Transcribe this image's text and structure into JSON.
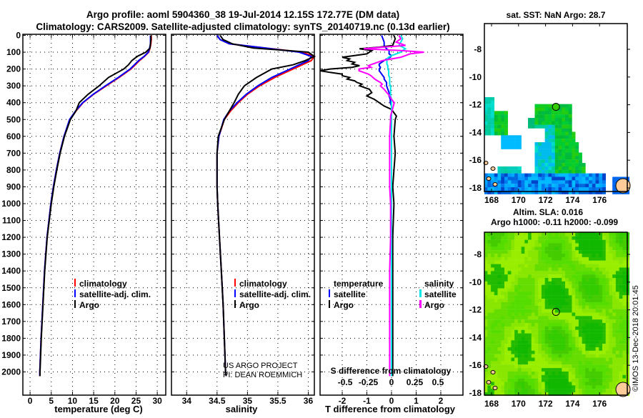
{
  "title": {
    "line1": "Argo profile: aoml 5904360_38 19-Jul-2014 12.15S 172.77E (DM data)",
    "line2": "Climatology: CARS2009. Satellite-adjusted climatology: synTS_20140719.nc (0.13d earlier)"
  },
  "depth_ticks": [
    "0",
    "100",
    "200",
    "300",
    "400",
    "500",
    "600",
    "700",
    "800",
    "900",
    "1000",
    "1100",
    "1200",
    "1300",
    "1400",
    "1500",
    "1600",
    "1700",
    "1800",
    "1900",
    "2000"
  ],
  "chart_data": [
    {
      "type": "line",
      "title": "",
      "xlabel": "temperature (deg C)",
      "ylabel": "depth",
      "xlim": [
        -1.7,
        32
      ],
      "ylim": [
        2025,
        0
      ],
      "xticks": [
        "0",
        "5",
        "10",
        "15",
        "20",
        "25",
        "30"
      ],
      "xtick_values": [
        0,
        5,
        10,
        15,
        20,
        25,
        30
      ],
      "legend": "bottom-right",
      "depths": [
        0,
        25,
        50,
        75,
        100,
        125,
        150,
        175,
        200,
        250,
        300,
        350,
        400,
        450,
        500,
        600,
        700,
        800,
        900,
        1000,
        1200,
        1400,
        1600,
        1800,
        2000,
        2025
      ],
      "series": [
        {
          "name": "climatology",
          "color": "#ff0000",
          "values": [
            28.6,
            28.6,
            28.5,
            28.3,
            28.0,
            27.0,
            25.8,
            24.8,
            23.8,
            21.0,
            18.0,
            15.0,
            12.5,
            10.8,
            9.4,
            8.0,
            7.0,
            6.2,
            5.5,
            4.9,
            4.0,
            3.4,
            3.0,
            2.6,
            2.3,
            2.3
          ]
        },
        {
          "name": "satellite-adj. clim.",
          "color": "#0000ff",
          "values": [
            28.4,
            28.4,
            28.4,
            28.2,
            27.9,
            26.9,
            25.6,
            24.6,
            23.6,
            20.8,
            17.8,
            14.9,
            12.4,
            10.7,
            9.3,
            8.0,
            7.0,
            6.2,
            5.5,
            4.9,
            4.0,
            3.4,
            3.0,
            2.6,
            2.3,
            2.3
          ]
        },
        {
          "name": "Argo",
          "color": "#000000",
          "values": [
            28.5,
            28.5,
            28.4,
            28.3,
            27.3,
            25.3,
            24.0,
            23.2,
            22.1,
            18.5,
            16.3,
            13.7,
            11.6,
            10.8,
            9.5,
            8.1,
            7.1,
            6.3,
            5.6,
            5.0,
            4.05,
            3.45,
            3.05,
            2.65,
            2.35,
            2.35
          ]
        }
      ]
    },
    {
      "type": "line",
      "title": "",
      "xlabel": "salinity",
      "ylabel": "depth",
      "xlim": [
        33.75,
        36.1
      ],
      "ylim": [
        2025,
        0
      ],
      "xticks": [
        "34",
        "34.5",
        "35",
        "35.5",
        "36"
      ],
      "xtick_values": [
        34,
        34.5,
        35,
        35.5,
        36
      ],
      "legend": "bottom-right",
      "depths": [
        0,
        25,
        50,
        75,
        100,
        125,
        150,
        175,
        200,
        250,
        300,
        350,
        400,
        450,
        500,
        600,
        700,
        800,
        900,
        1000,
        1200,
        1400,
        1600,
        1800,
        2000,
        2025
      ],
      "series": [
        {
          "name": "climatology",
          "color": "#ff0000",
          "values": [
            34.5,
            34.55,
            34.7,
            35.3,
            35.9,
            36.1,
            36.05,
            35.9,
            35.75,
            35.45,
            35.2,
            35.0,
            34.85,
            34.72,
            34.62,
            34.53,
            34.5,
            34.5,
            34.5,
            34.51,
            34.54,
            34.57,
            34.6,
            34.62,
            34.64,
            34.65
          ]
        },
        {
          "name": "satellite-adj. clim.",
          "color": "#0000ff",
          "values": [
            34.5,
            34.55,
            34.7,
            35.3,
            35.85,
            36.05,
            36.0,
            35.85,
            35.7,
            35.4,
            35.17,
            34.98,
            34.83,
            34.7,
            34.61,
            34.53,
            34.5,
            34.5,
            34.5,
            34.51,
            34.54,
            34.57,
            34.6,
            34.62,
            34.64,
            34.65
          ]
        },
        {
          "name": "Argo",
          "color": "#000000",
          "values": [
            34.55,
            34.6,
            34.75,
            35.1,
            36.0,
            36.1,
            35.95,
            35.75,
            35.4,
            35.15,
            34.95,
            34.85,
            34.78,
            34.7,
            34.62,
            34.52,
            34.5,
            34.5,
            34.5,
            34.51,
            34.54,
            34.57,
            34.6,
            34.62,
            34.64,
            34.65
          ]
        }
      ]
    },
    {
      "type": "line",
      "title": "",
      "xlabel": "T difference from climatology",
      "xlabel2": "S difference from climatology",
      "ylabel": "depth",
      "xlim": [
        -2.9,
        2.9
      ],
      "xlim_S": [
        -0.77,
        0.77
      ],
      "ylim": [
        2025,
        0
      ],
      "xticks": [
        "-2",
        "-1",
        "0",
        "1",
        "2"
      ],
      "xtick_values": [
        -2,
        -1,
        0,
        1,
        2
      ],
      "xticks_S": [
        "-0.5",
        "-0.25",
        "0",
        "0.25",
        "0.5"
      ],
      "xtick_values_S": [
        -0.5,
        -0.25,
        0,
        0.25,
        0.5
      ],
      "legend_left_title": "temperature",
      "legend_right_title": "salinity",
      "depths": [
        0,
        20,
        40,
        60,
        70,
        80,
        90,
        100,
        110,
        120,
        130,
        140,
        150,
        160,
        170,
        180,
        190,
        200,
        210,
        220,
        230,
        240,
        250,
        260,
        270,
        280,
        290,
        300,
        320,
        340,
        360,
        380,
        400,
        420,
        440,
        460,
        480,
        500,
        600,
        700,
        800,
        900,
        1000,
        1200,
        1400,
        1600,
        1800,
        2000,
        2025
      ],
      "series": [
        {
          "name": "satellite",
          "variable": "temperature",
          "color": "#0000ff",
          "values": [
            -0.4,
            -0.35,
            -0.3,
            -0.3,
            -0.25,
            -0.2,
            -0.1,
            -0.1,
            -0.1,
            0,
            -0.05,
            -0.2,
            -0.3,
            -0.4,
            -0.5,
            -0.5,
            -0.45,
            -0.5,
            -0.5,
            -0.45,
            -0.4,
            -0.35,
            -0.3,
            -0.3,
            -0.25,
            -0.2,
            -0.2,
            -0.2,
            -0.15,
            -0.1,
            -0.1,
            -0.05,
            -0.05,
            0,
            0,
            0,
            0,
            0,
            0,
            0,
            0,
            0,
            0,
            0,
            0,
            0,
            0,
            0,
            0
          ]
        },
        {
          "name": "Argo",
          "variable": "temperature",
          "color": "#000000",
          "values": [
            0.1,
            0.15,
            0.1,
            0.05,
            -0.5,
            -1.3,
            -0.8,
            -0.9,
            -1.0,
            -1.5,
            -2.0,
            -1.7,
            -1.8,
            -1.5,
            -1.6,
            -1.3,
            -1.6,
            -2.5,
            -2.9,
            -2.5,
            -2.0,
            -2.0,
            -1.7,
            -1.8,
            -1.5,
            -1.4,
            -1.2,
            -1.3,
            -0.9,
            -0.8,
            -1.0,
            -0.7,
            -0.5,
            -0.3,
            0.0,
            0.1,
            0.2,
            0.15,
            0.1,
            0.15,
            0.1,
            0.05,
            0.1,
            0.05,
            0.05,
            0.05,
            0.05,
            0.05,
            0.05
          ]
        },
        {
          "name": "satellite",
          "variable": "salinity",
          "color": "#00e5e5",
          "values": [
            0.1,
            0.12,
            0.1,
            0.08,
            0.12,
            0.15,
            0.12,
            0.1,
            0.05,
            0.0,
            -0.03,
            -0.05,
            -0.05,
            -0.05,
            -0.05,
            -0.04,
            -0.04,
            -0.04,
            -0.03,
            -0.03,
            -0.03,
            -0.03,
            -0.02,
            -0.02,
            -0.02,
            -0.02,
            -0.02,
            -0.01,
            -0.01,
            -0.01,
            -0.01,
            0,
            0,
            0,
            0,
            0,
            0,
            0,
            0,
            0,
            0,
            0,
            0,
            0,
            0,
            0,
            0,
            0,
            0
          ]
        },
        {
          "name": "Argo",
          "variable": "salinity",
          "color": "#ff00ff",
          "values": [
            0.08,
            0.1,
            0.05,
            0.15,
            -0.1,
            -0.3,
            0.1,
            0.35,
            0.2,
            0.15,
            0.1,
            0.0,
            -0.1,
            -0.15,
            -0.2,
            -0.25,
            -0.22,
            -0.35,
            -0.35,
            -0.3,
            -0.25,
            -0.22,
            -0.2,
            -0.18,
            -0.15,
            -0.12,
            -0.1,
            -0.12,
            -0.08,
            -0.05,
            -0.02,
            0,
            0.03,
            0.02,
            0.01,
            0,
            -0.01,
            -0.01,
            -0.02,
            -0.02,
            -0.02,
            -0.02,
            -0.01,
            -0.01,
            -0.02,
            -0.02,
            -0.02,
            -0.02,
            -0.02
          ]
        }
      ]
    }
  ],
  "maps": [
    {
      "title": "sat. SST: NaN Argo: 28.7",
      "xticks": [
        "168",
        "170",
        "172",
        "174",
        "176"
      ],
      "yticks": [
        "-8",
        "-10",
        "-12",
        "-14",
        "-16",
        "-18"
      ]
    },
    {
      "title_line1": "Altim. SLA: 0.016",
      "title_line2": "Argo h1000: -0.11 h2000: -0.099",
      "xticks": [
        "168",
        "170",
        "172",
        "174",
        "176"
      ],
      "yticks": [
        "-8",
        "-10",
        "-12",
        "-14",
        "-16",
        "-18"
      ]
    }
  ],
  "float_position": {
    "lon": 172.77,
    "lat": -12.15
  },
  "credits": {
    "project": "US ARGO PROJECT",
    "pi": "PI: DEAN ROEMMICH",
    "stamp": "©IMOS 13-Dec-2018 20:01:45"
  }
}
